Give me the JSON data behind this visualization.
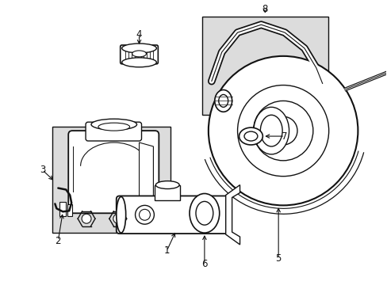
{
  "bg": "#ffffff",
  "lc": "#111111",
  "shaded": "#dcdcdc",
  "figsize": [
    4.89,
    3.6
  ],
  "dpi": 100
}
